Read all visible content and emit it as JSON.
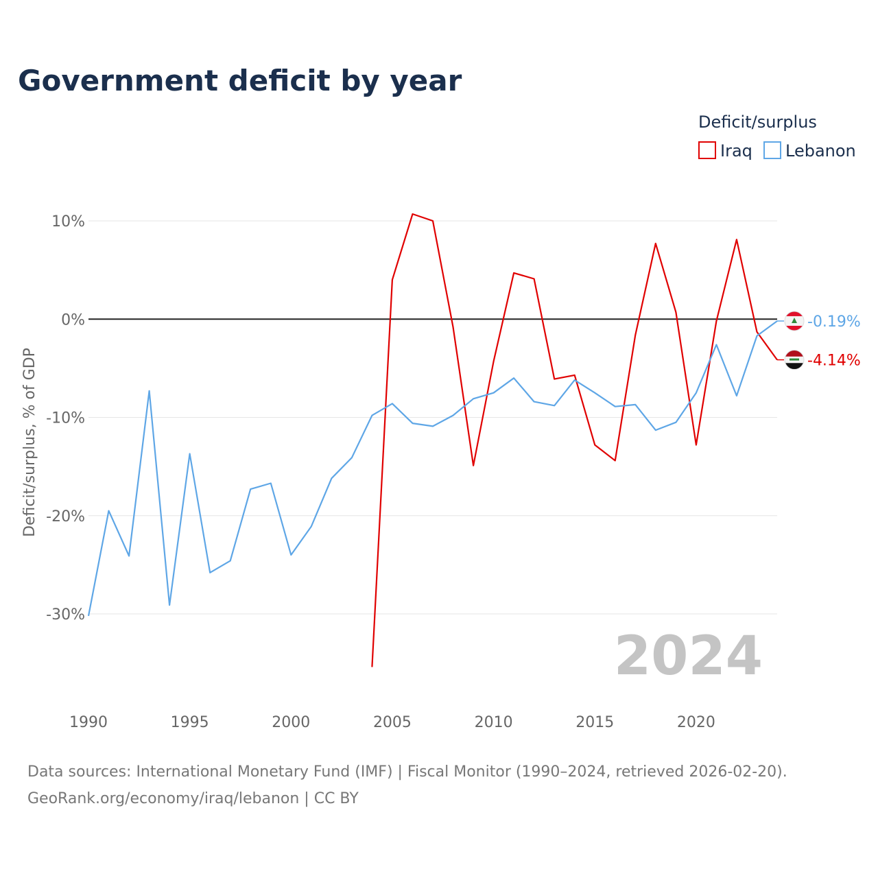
{
  "colors": {
    "iraq": "#e00000",
    "lebanon": "#5ea6e6",
    "title": "#1b2f4d",
    "tick": "#666666",
    "year_watermark": "#c4c4c4"
  },
  "chart_data": {
    "type": "line",
    "title": "Government deficit by year",
    "legend_title": "Deficit/surplus",
    "legend_position": "top-right",
    "ylabel": "Deficit/surplus, % of GDP",
    "xlabel": "",
    "year_watermark": "2024",
    "xlim": [
      1990,
      2024
    ],
    "ylim": [
      -38,
      14
    ],
    "x_ticks": [
      1990,
      1995,
      2000,
      2005,
      2010,
      2015,
      2020
    ],
    "x_tick_labels": [
      "1990",
      "1995",
      "2000",
      "2005",
      "2010",
      "2015",
      "2020"
    ],
    "y_ticks": [
      10,
      0,
      -10,
      -20,
      -30
    ],
    "y_tick_labels": [
      "10%",
      "0%",
      "-10%",
      "-20%",
      "-30%"
    ],
    "series": [
      {
        "name": "Iraq",
        "color_key": "iraq",
        "end_label": "-4.14%",
        "flag_icon": "iraq-flag-icon",
        "x": [
          2004,
          2005,
          2006,
          2007,
          2008,
          2009,
          2010,
          2011,
          2012,
          2013,
          2014,
          2015,
          2016,
          2017,
          2018,
          2019,
          2020,
          2021,
          2022,
          2023,
          2024
        ],
        "values": [
          -35.4,
          4.0,
          10.7,
          10.0,
          -0.8,
          -14.9,
          -4.3,
          4.7,
          4.1,
          -6.1,
          -5.7,
          -12.8,
          -14.4,
          -1.6,
          7.7,
          0.7,
          -12.8,
          -0.2,
          8.1,
          -1.3,
          -4.14
        ]
      },
      {
        "name": "Lebanon",
        "color_key": "lebanon",
        "end_label": "-0.19%",
        "flag_icon": "lebanon-flag-icon",
        "x": [
          1990,
          1991,
          1992,
          1993,
          1994,
          1995,
          1996,
          1997,
          1998,
          1999,
          2000,
          2001,
          2002,
          2003,
          2004,
          2005,
          2006,
          2007,
          2008,
          2009,
          2010,
          2011,
          2012,
          2013,
          2014,
          2015,
          2016,
          2017,
          2018,
          2019,
          2020,
          2021,
          2022,
          2023,
          2024
        ],
        "values": [
          -30.2,
          -19.5,
          -24.1,
          -7.3,
          -29.1,
          -13.7,
          -25.8,
          -24.6,
          -17.3,
          -16.7,
          -24.0,
          -21.1,
          -16.2,
          -14.1,
          -9.8,
          -8.6,
          -10.6,
          -10.9,
          -9.8,
          -8.1,
          -7.5,
          -6.0,
          -8.4,
          -8.8,
          -6.2,
          -7.5,
          -8.9,
          -8.7,
          -11.3,
          -10.5,
          -7.5,
          -2.6,
          -7.8,
          -1.7,
          -0.19
        ]
      }
    ]
  },
  "footer": {
    "source_line": "Data sources: International Monetary Fund (IMF) | Fiscal Monitor (1990–2024, retrieved 2026-02-20).",
    "credit_line": "GeoRank.org/economy/iraq/lebanon | CC BY"
  }
}
